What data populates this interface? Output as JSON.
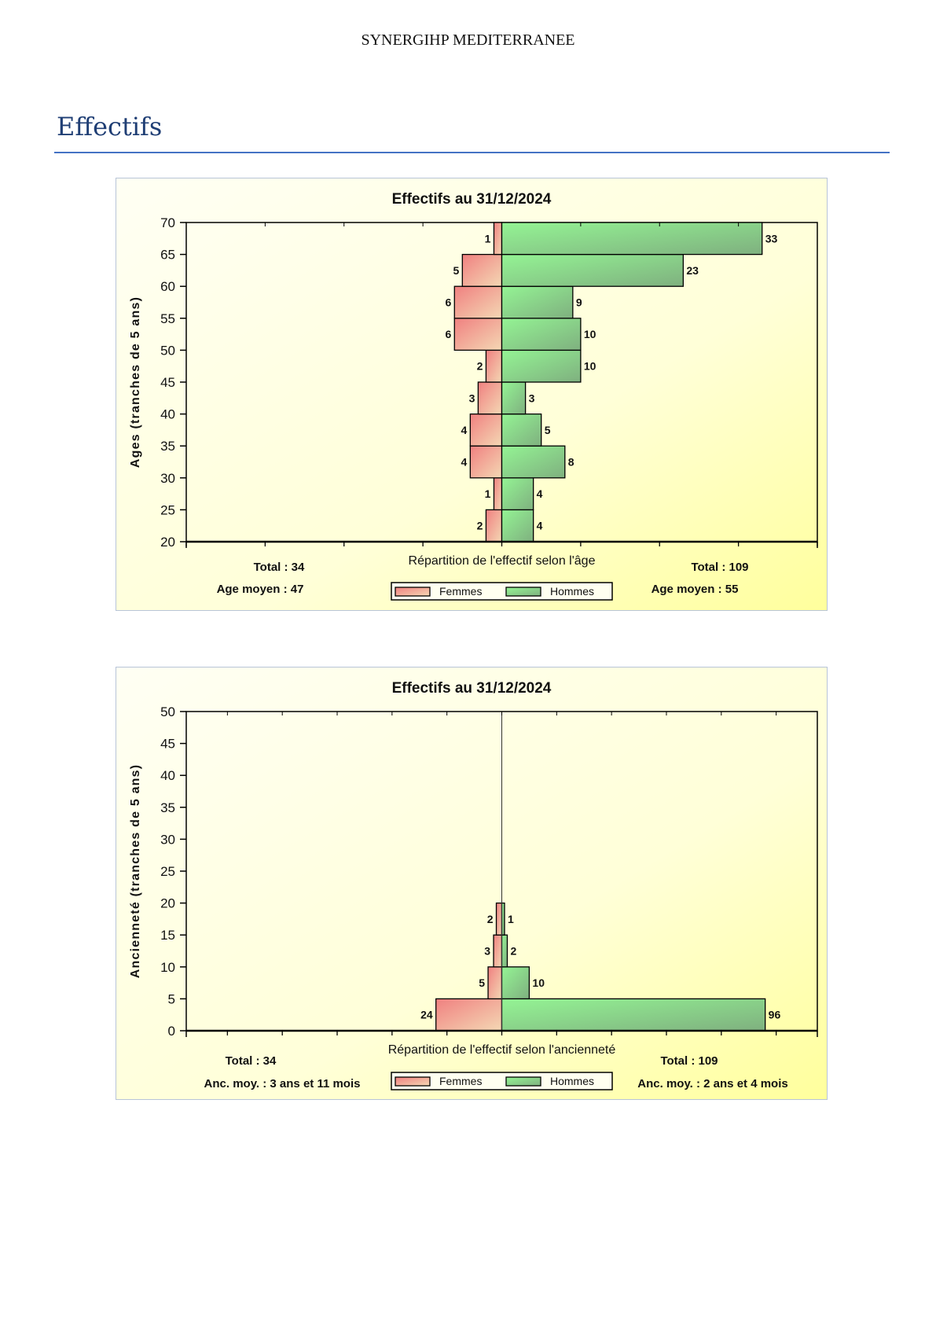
{
  "header": {
    "text": "SYNERGIHP MEDITERRANEE"
  },
  "section": {
    "title": "Effectifs"
  },
  "colors": {
    "femmes": "#F08A8A",
    "hommes": "#8EE88E",
    "rule": "#4472C4",
    "title": "#1F3E74"
  },
  "chart_data": [
    {
      "type": "bar",
      "orientation": "horizontal-pyramid",
      "title": "Effectifs au 31/12/2024",
      "xlabel": "Répartition de l'effectif selon l'âge",
      "ylabel": "Ages (tranches de 5 ans)",
      "ylim": [
        20,
        70
      ],
      "yticks": [
        20,
        25,
        30,
        35,
        40,
        45,
        50,
        55,
        60,
        65,
        70
      ],
      "xlim": [
        -40,
        40
      ],
      "categories": [
        "20-25",
        "25-30",
        "30-35",
        "35-40",
        "40-45",
        "45-50",
        "50-55",
        "55-60",
        "60-65",
        "65-70"
      ],
      "series": [
        {
          "name": "Femmes",
          "values": [
            2,
            1,
            4,
            4,
            3,
            2,
            6,
            6,
            5,
            1
          ]
        },
        {
          "name": "Hommes",
          "values": [
            4,
            4,
            8,
            5,
            3,
            10,
            10,
            9,
            23,
            33
          ]
        }
      ],
      "left_stats": {
        "total": "Total : 34",
        "mean": "Age moyen : 47"
      },
      "right_stats": {
        "total": "Total : 109",
        "mean": "Age moyen : 55"
      },
      "legend": {
        "femmes": "Femmes",
        "hommes": "Hommes",
        "position": "bottom"
      },
      "grid": false
    },
    {
      "type": "bar",
      "orientation": "horizontal-pyramid",
      "title": "Effectifs au 31/12/2024",
      "xlabel": "Répartition de l'effectif selon l'ancienneté",
      "ylabel": "Ancienneté (tranches de 5 ans)",
      "ylim": [
        0,
        50
      ],
      "yticks": [
        0,
        5,
        10,
        15,
        20,
        25,
        30,
        35,
        40,
        45,
        50
      ],
      "xlim": [
        -115,
        115
      ],
      "categories": [
        "0-5",
        "5-10",
        "10-15",
        "15-20"
      ],
      "series": [
        {
          "name": "Femmes",
          "values": [
            24,
            5,
            3,
            2
          ]
        },
        {
          "name": "Hommes",
          "values": [
            96,
            10,
            2,
            1
          ]
        }
      ],
      "left_stats": {
        "total": "Total : 34",
        "mean": "Anc. moy. : 3 ans et 11 mois"
      },
      "right_stats": {
        "total": "Total : 109",
        "mean": "Anc. moy. : 2 ans et 4 mois"
      },
      "legend": {
        "femmes": "Femmes",
        "hommes": "Hommes",
        "position": "bottom"
      },
      "grid": false
    }
  ]
}
